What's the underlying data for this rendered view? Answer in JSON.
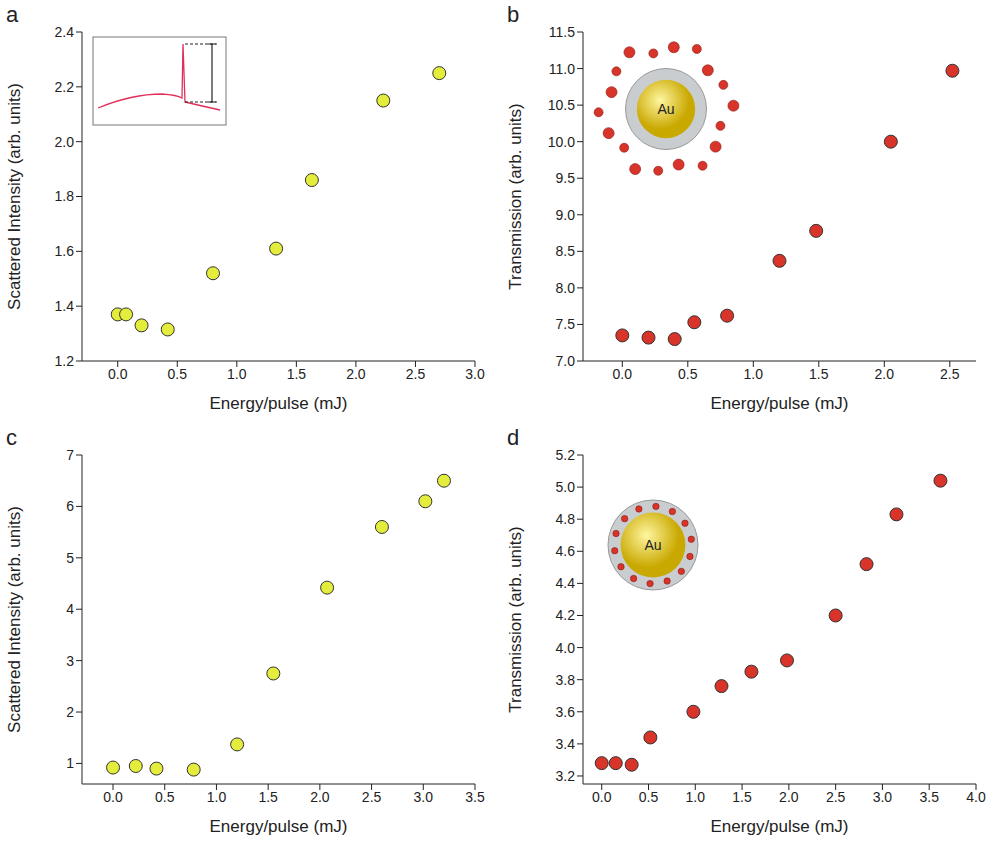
{
  "chart_data": [
    {
      "type": "scatter",
      "panel": "a",
      "color": "#e4ec3c",
      "marker": "circle",
      "grid": false,
      "x_label": "Energy/pulse (mJ)",
      "y_label": "Scattered Intensity (arb. units)",
      "x": [
        0,
        0.07,
        0.2,
        0.42,
        0.8,
        1.33,
        1.63,
        2.23,
        2.7
      ],
      "values": [
        1.37,
        1.37,
        1.33,
        1.315,
        1.52,
        1.61,
        1.86,
        2.15,
        2.25
      ],
      "xlim": [
        -0.3,
        3.0
      ],
      "xticks": [
        {
          "value": 0,
          "label": "0.0"
        },
        {
          "value": 0.5,
          "label": "0.5"
        },
        {
          "value": 1,
          "label": "1.0"
        },
        {
          "value": 1.5,
          "label": "1.5"
        },
        {
          "value": 2,
          "label": "2.0"
        },
        {
          "value": 2.5,
          "label": "2.5"
        },
        {
          "value": 3,
          "label": "3.0"
        }
      ],
      "ylim": [
        1.2,
        2.4
      ],
      "yticks": [
        1.2,
        1.4,
        1.6,
        1.8,
        {
          "value": 2,
          "label": "2.0"
        },
        2.2,
        2.4
      ]
    },
    {
      "type": "scatter",
      "panel": "b",
      "color": "#d8342a",
      "marker": "circle",
      "grid": false,
      "x_label": "Energy/pulse (mJ)",
      "y_label": "Transmission (arb. units)",
      "annotations": [
        "Au"
      ],
      "x": [
        0,
        0.2,
        0.4,
        0.55,
        0.8,
        1.2,
        1.48,
        2.05,
        2.52
      ],
      "values": [
        7.35,
        7.32,
        7.3,
        7.53,
        7.62,
        8.37,
        8.78,
        10.0,
        10.97
      ],
      "xlim": [
        -0.3,
        2.7
      ],
      "xticks": [
        {
          "value": 0,
          "label": "0.0"
        },
        {
          "value": 0.5,
          "label": "0.5"
        },
        {
          "value": 1,
          "label": "1.0"
        },
        {
          "value": 1.5,
          "label": "1.5"
        },
        {
          "value": 2,
          "label": "2.0"
        },
        {
          "value": 2.5,
          "label": "2.5"
        }
      ],
      "ylim": [
        7.0,
        11.5
      ],
      "yticks": [
        {
          "value": 7,
          "label": "7.0"
        },
        7.5,
        {
          "value": 8,
          "label": "8.0"
        },
        8.5,
        {
          "value": 9,
          "label": "9.0"
        },
        9.5,
        {
          "value": 10,
          "label": "10.0"
        },
        10.5,
        {
          "value": 11,
          "label": "11.0"
        },
        11.5
      ]
    },
    {
      "type": "scatter",
      "panel": "c",
      "color": "#e4ec3c",
      "marker": "circle",
      "grid": false,
      "x_label": "Energy/pulse (mJ)",
      "y_label": "Scattered Intensity (arb. units)",
      "x": [
        0,
        0.22,
        0.42,
        0.78,
        1.2,
        1.55,
        2.07,
        2.6,
        3.02,
        3.2
      ],
      "values": [
        0.92,
        0.95,
        0.9,
        0.88,
        1.37,
        2.75,
        4.42,
        5.6,
        6.1,
        6.5
      ],
      "xlim": [
        -0.3,
        3.5
      ],
      "xticks": [
        {
          "value": 0,
          "label": "0.0"
        },
        {
          "value": 0.5,
          "label": "0.5"
        },
        {
          "value": 1,
          "label": "1.0"
        },
        {
          "value": 1.5,
          "label": "1.5"
        },
        {
          "value": 2,
          "label": "2.0"
        },
        {
          "value": 2.5,
          "label": "2.5"
        },
        {
          "value": 3,
          "label": "3.0"
        },
        {
          "value": 3.5,
          "label": "3.5"
        }
      ],
      "ylim": [
        0.6,
        7
      ],
      "yticks": [
        1,
        2,
        3,
        4,
        5,
        6,
        7
      ]
    },
    {
      "type": "scatter",
      "panel": "d",
      "color": "#d8342a",
      "marker": "circle",
      "grid": false,
      "x_label": "Energy/pulse (mJ)",
      "y_label": "Transmission (arb. units)",
      "annotations": [
        "Au"
      ],
      "x": [
        0,
        0.15,
        0.32,
        0.52,
        0.98,
        1.28,
        1.6,
        1.98,
        2.5,
        2.83,
        3.15,
        3.62
      ],
      "values": [
        3.28,
        3.28,
        3.27,
        3.44,
        3.6,
        3.76,
        3.85,
        3.92,
        4.2,
        4.52,
        4.83,
        5.04
      ],
      "xlim": [
        -0.2,
        4.0
      ],
      "xticks": [
        {
          "value": 0,
          "label": "0.0"
        },
        {
          "value": 0.5,
          "label": "0.5"
        },
        {
          "value": 1,
          "label": "1.0"
        },
        {
          "value": 1.5,
          "label": "1.5"
        },
        {
          "value": 2,
          "label": "2.0"
        },
        {
          "value": 2.5,
          "label": "2.5"
        },
        {
          "value": 3,
          "label": "3.0"
        },
        {
          "value": 3.5,
          "label": "3.5"
        },
        {
          "value": 4,
          "label": "4.0"
        }
      ],
      "ylim": [
        3.15,
        5.2
      ],
      "yticks": [
        3.2,
        3.4,
        3.6,
        3.8,
        {
          "value": 4,
          "label": "4.0"
        },
        4.2,
        4.4,
        4.6,
        4.8,
        {
          "value": 5,
          "label": "5.0"
        },
        5.2
      ]
    }
  ]
}
